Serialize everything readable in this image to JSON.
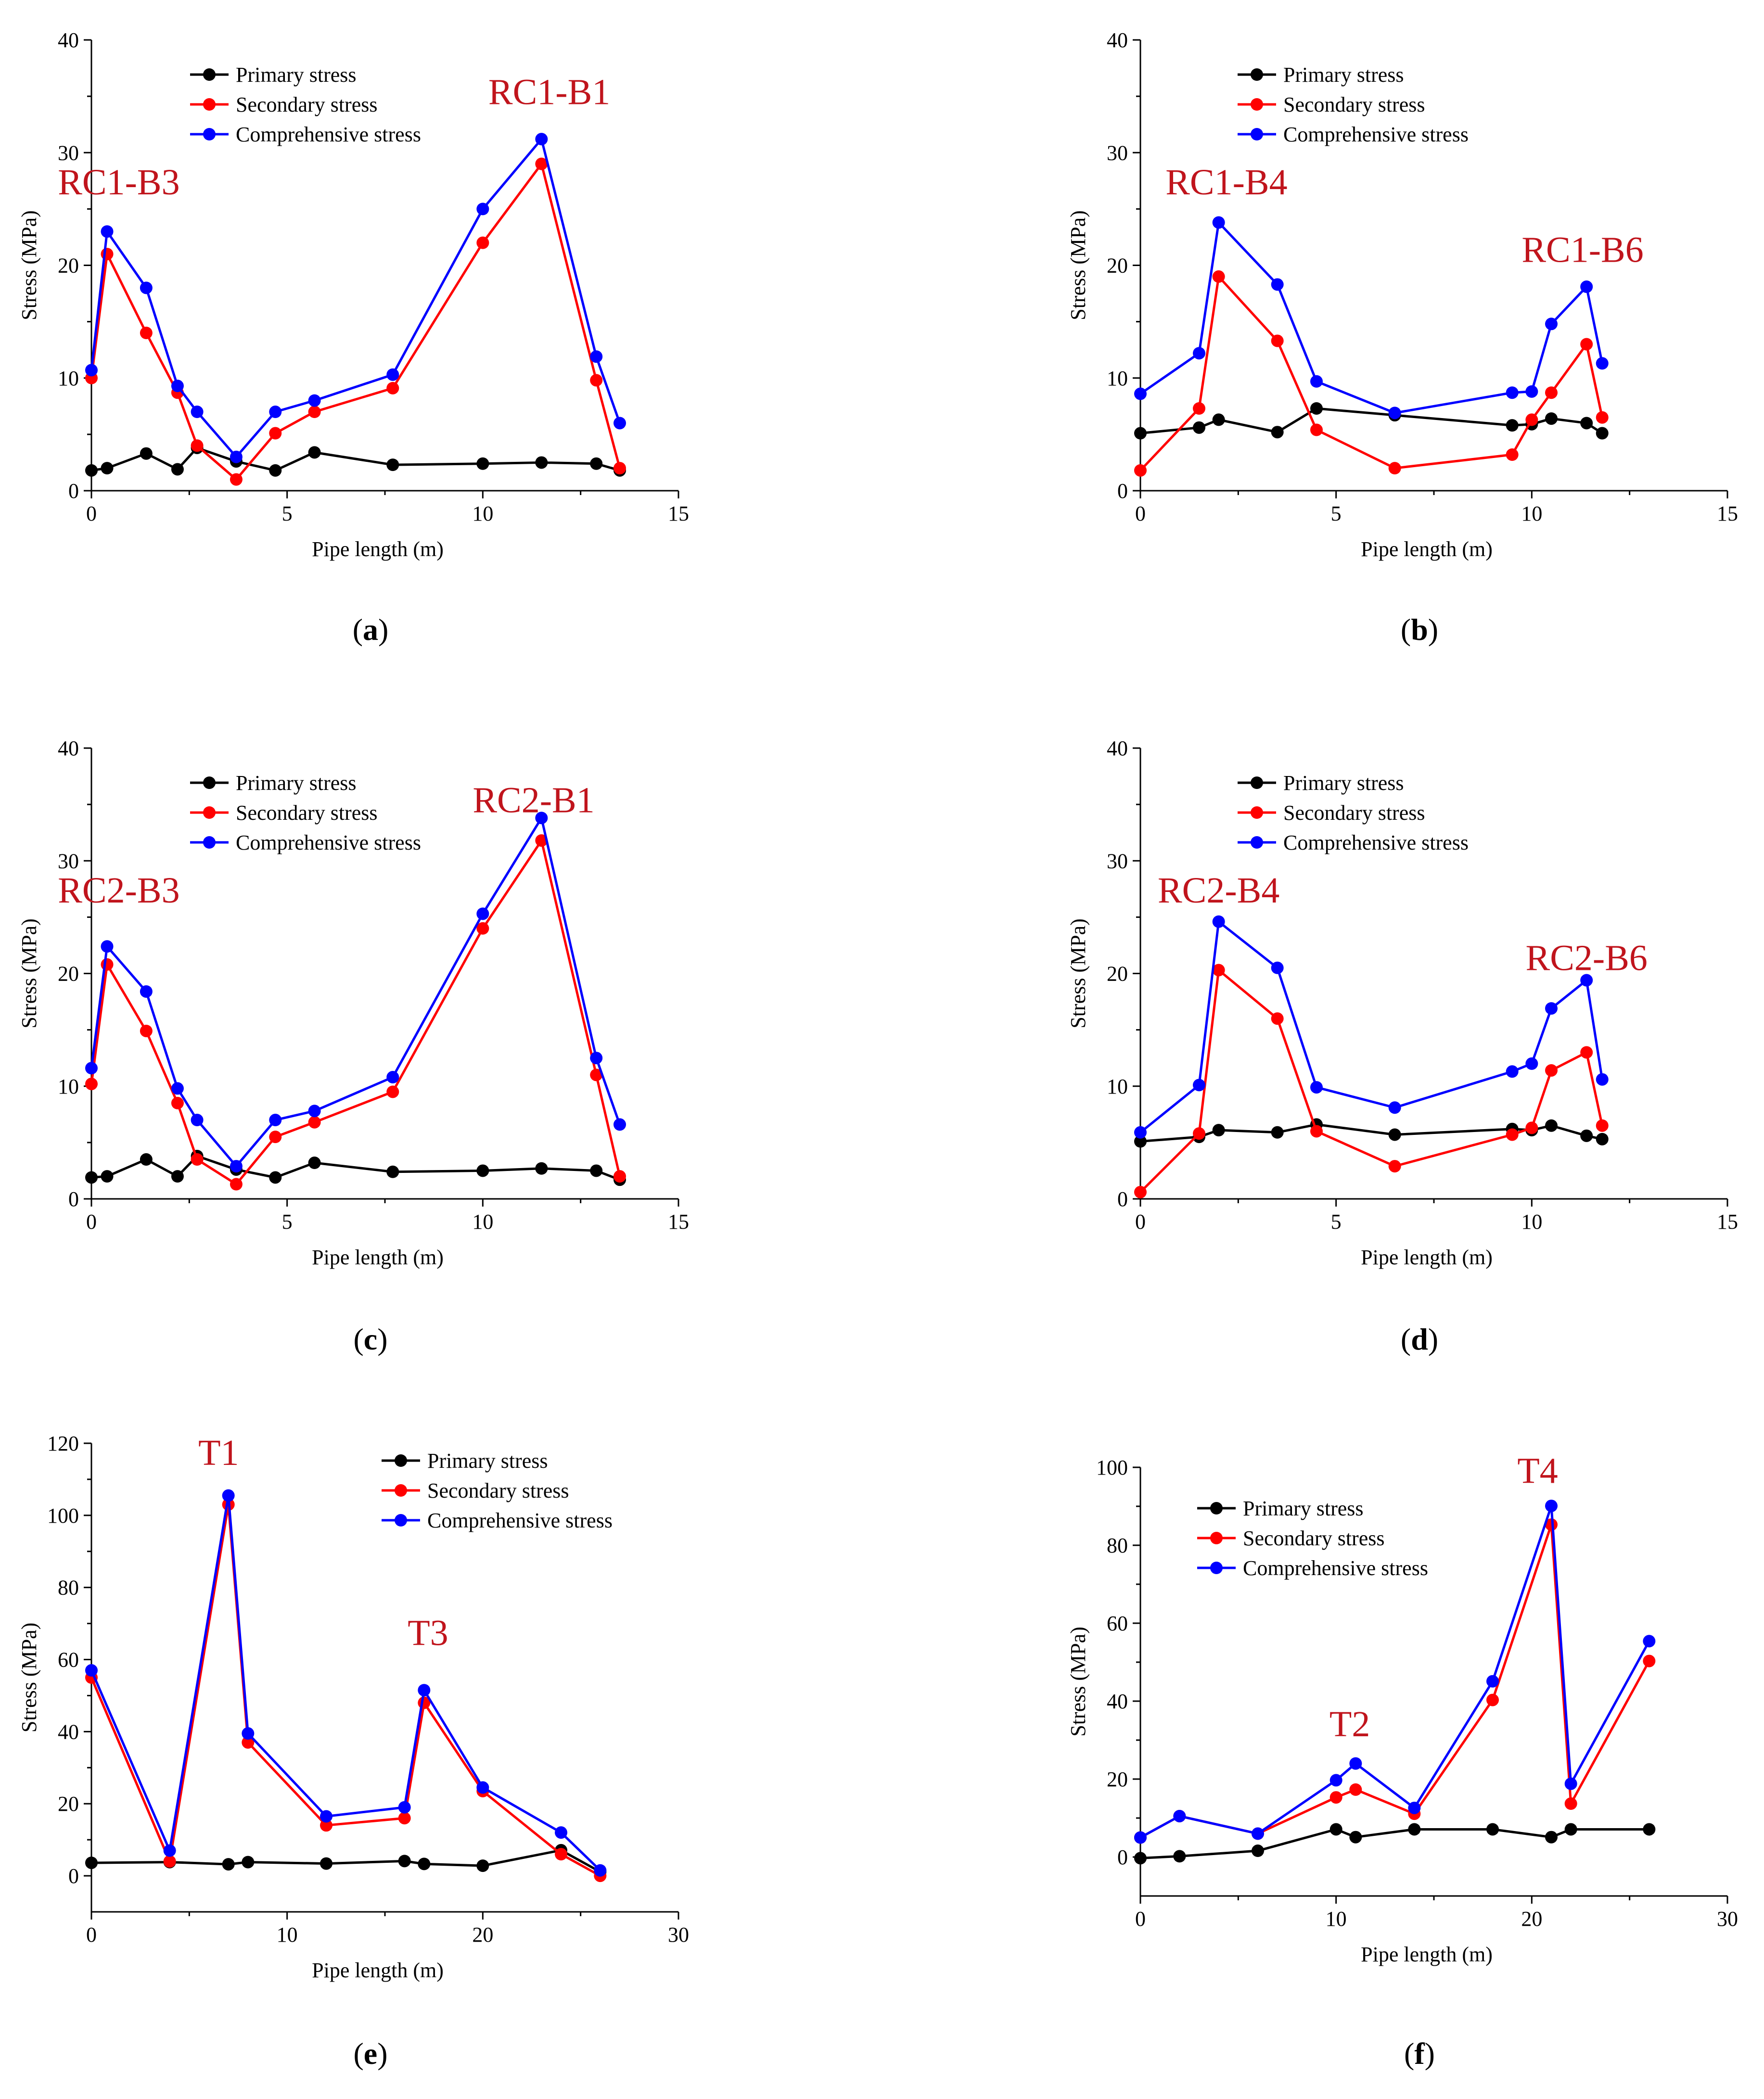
{
  "figure": {
    "colors": {
      "primary": "#000000",
      "secondary": "#ff0000",
      "comprehensive": "#0000ff",
      "annotation": "#c0141c"
    }
  },
  "chart_data": [
    {
      "type": "line",
      "panel_label": "a",
      "xlabel": "Pipe length (m)",
      "ylabel": "Stress (MPa)",
      "xlim": [
        0,
        15
      ],
      "ylim": [
        0,
        40
      ],
      "xticks": [
        0,
        5,
        10,
        15
      ],
      "xtick_labels": [
        "0",
        "5",
        "10",
        "15"
      ],
      "yticks": [
        0,
        10,
        20,
        30,
        40
      ],
      "ytick_labels": [
        "0",
        "10",
        "20",
        "30",
        "40"
      ],
      "legend_position": "top-center",
      "series": [
        {
          "name": "Primary stress",
          "color": "#000000",
          "x": [
            0,
            0.4,
            1.4,
            2.2,
            2.7,
            3.7,
            4.7,
            5.7,
            7.7,
            10,
            11.5,
            12.9,
            13.5
          ],
          "y": [
            1.8,
            2.0,
            3.3,
            1.9,
            3.8,
            2.6,
            1.8,
            3.4,
            2.3,
            2.4,
            2.5,
            2.4,
            1.8
          ]
        },
        {
          "name": "Secondary stress",
          "color": "#ff0000",
          "x": [
            0,
            0.4,
            1.4,
            2.2,
            2.7,
            3.7,
            4.7,
            5.7,
            7.7,
            10,
            11.5,
            12.9,
            13.5
          ],
          "y": [
            10,
            21,
            14,
            8.7,
            4,
            1,
            5.1,
            7,
            9.1,
            22,
            29,
            9.8,
            2
          ]
        },
        {
          "name": "Comprehensive stress",
          "color": "#0000ff",
          "x": [
            0,
            0.4,
            1.4,
            2.2,
            2.7,
            3.7,
            4.7,
            5.7,
            7.7,
            10,
            11.5,
            12.9,
            13.5
          ],
          "y": [
            10.7,
            23,
            18,
            9.3,
            7,
            3,
            7,
            8,
            10.3,
            25,
            31.2,
            11.9,
            6
          ]
        }
      ],
      "annotations": [
        {
          "text": "RC1-B3",
          "x": 0.7,
          "y": 26.3
        },
        {
          "text": "RC1-B1",
          "x": 11.7,
          "y": 34.3
        }
      ]
    },
    {
      "type": "line",
      "panel_label": "b",
      "xlabel": "Pipe length (m)",
      "ylabel": "Stress (MPa)",
      "xlim": [
        0,
        15
      ],
      "ylim": [
        0,
        40
      ],
      "xticks": [
        0,
        5,
        10,
        15
      ],
      "xtick_labels": [
        "0",
        "5",
        "10",
        "15"
      ],
      "yticks": [
        0,
        10,
        20,
        30,
        40
      ],
      "ytick_labels": [
        "0",
        "10",
        "20",
        "30",
        "40"
      ],
      "legend_position": "top-center",
      "series": [
        {
          "name": "Primary stress",
          "color": "#000000",
          "x": [
            0,
            1.5,
            2,
            3.5,
            4.5,
            6.5,
            9.5,
            10,
            10.5,
            11.4,
            11.8
          ],
          "y": [
            5.1,
            5.6,
            6.3,
            5.2,
            7.3,
            6.7,
            5.8,
            5.9,
            6.4,
            6.0,
            5.1
          ]
        },
        {
          "name": "Secondary stress",
          "color": "#ff0000",
          "x": [
            0,
            1.5,
            2,
            3.5,
            4.5,
            6.5,
            9.5,
            10,
            10.5,
            11.4,
            11.8
          ],
          "y": [
            1.8,
            7.3,
            19,
            13.3,
            5.4,
            2,
            3.2,
            6.3,
            8.7,
            13,
            6.5
          ]
        },
        {
          "name": "Comprehensive stress",
          "color": "#0000ff",
          "x": [
            0,
            1.5,
            2,
            3.5,
            4.5,
            6.5,
            9.5,
            10,
            10.5,
            11.4,
            11.8
          ],
          "y": [
            8.6,
            12.2,
            23.8,
            18.3,
            9.7,
            6.9,
            8.7,
            8.8,
            14.8,
            18.1,
            11.3
          ]
        }
      ],
      "annotations": [
        {
          "text": "RC1-B4",
          "x": 2.2,
          "y": 26.3
        },
        {
          "text": "RC1-B6",
          "x": 11.3,
          "y": 20.3
        }
      ]
    },
    {
      "type": "line",
      "panel_label": "c",
      "xlabel": "Pipe length (m)",
      "ylabel": "Stress (MPa)",
      "xlim": [
        0,
        15
      ],
      "ylim": [
        0,
        40
      ],
      "xticks": [
        0,
        5,
        10,
        15
      ],
      "xtick_labels": [
        "0",
        "5",
        "10",
        "15"
      ],
      "yticks": [
        0,
        10,
        20,
        30,
        40
      ],
      "ytick_labels": [
        "0",
        "10",
        "20",
        "30",
        "40"
      ],
      "legend_position": "top-center",
      "series": [
        {
          "name": "Primary stress",
          "color": "#000000",
          "x": [
            0,
            0.4,
            1.4,
            2.2,
            2.7,
            3.7,
            4.7,
            5.7,
            7.7,
            10,
            11.5,
            12.9,
            13.5
          ],
          "y": [
            1.9,
            2.0,
            3.5,
            2.0,
            3.8,
            2.6,
            1.9,
            3.2,
            2.4,
            2.5,
            2.7,
            2.5,
            1.7
          ]
        },
        {
          "name": "Secondary stress",
          "color": "#ff0000",
          "x": [
            0,
            0.4,
            1.4,
            2.2,
            2.7,
            3.7,
            4.7,
            5.7,
            7.7,
            10,
            11.5,
            12.9,
            13.5
          ],
          "y": [
            10.2,
            20.8,
            14.9,
            8.5,
            3.5,
            1.3,
            5.5,
            6.8,
            9.5,
            24,
            31.8,
            11,
            2
          ]
        },
        {
          "name": "Comprehensive stress",
          "color": "#0000ff",
          "x": [
            0,
            0.4,
            1.4,
            2.2,
            2.7,
            3.7,
            4.7,
            5.7,
            7.7,
            10,
            11.5,
            12.9,
            13.5
          ],
          "y": [
            11.6,
            22.4,
            18.4,
            9.8,
            7,
            2.9,
            7,
            7.8,
            10.8,
            25.3,
            33.8,
            12.5,
            6.6
          ]
        }
      ],
      "annotations": [
        {
          "text": "RC2-B3",
          "x": 0.7,
          "y": 26.3
        },
        {
          "text": "RC2-B1",
          "x": 11.3,
          "y": 34.3
        }
      ]
    },
    {
      "type": "line",
      "panel_label": "d",
      "xlabel": "Pipe length (m)",
      "ylabel": "Stress (MPa)",
      "xlim": [
        0,
        15
      ],
      "ylim": [
        0,
        40
      ],
      "xticks": [
        0,
        5,
        10,
        15
      ],
      "xtick_labels": [
        "0",
        "5",
        "10",
        "15"
      ],
      "yticks": [
        0,
        10,
        20,
        30,
        40
      ],
      "ytick_labels": [
        "0",
        "10",
        "20",
        "30",
        "40"
      ],
      "legend_position": "top-center",
      "series": [
        {
          "name": "Primary stress",
          "color": "#000000",
          "x": [
            0,
            1.5,
            2,
            3.5,
            4.5,
            6.5,
            9.5,
            10,
            10.5,
            11.4,
            11.8
          ],
          "y": [
            5.1,
            5.5,
            6.1,
            5.9,
            6.6,
            5.7,
            6.2,
            6.1,
            6.5,
            5.6,
            5.3
          ]
        },
        {
          "name": "Secondary stress",
          "color": "#ff0000",
          "x": [
            0,
            1.5,
            2,
            3.5,
            4.5,
            6.5,
            9.5,
            10,
            10.5,
            11.4,
            11.8
          ],
          "y": [
            0.6,
            5.8,
            20.3,
            16,
            6,
            2.9,
            5.7,
            6.3,
            11.4,
            13,
            6.5
          ]
        },
        {
          "name": "Comprehensive stress",
          "color": "#0000ff",
          "x": [
            0,
            1.5,
            2,
            3.5,
            4.5,
            6.5,
            9.5,
            10,
            10.5,
            11.4,
            11.8
          ],
          "y": [
            5.9,
            10.1,
            24.6,
            20.5,
            9.9,
            8.1,
            11.3,
            12,
            16.9,
            19.4,
            10.6
          ]
        }
      ],
      "annotations": [
        {
          "text": "RC2-B4",
          "x": 2.0,
          "y": 26.3
        },
        {
          "text": "RC2-B6",
          "x": 11.4,
          "y": 20.3
        }
      ]
    },
    {
      "type": "line",
      "panel_label": "e",
      "xlabel": "Pipe length (m)",
      "ylabel": "Stress (MPa)",
      "xlim": [
        0,
        30
      ],
      "ylim": [
        -10,
        120
      ],
      "xticks": [
        0,
        10,
        20,
        30
      ],
      "xtick_labels": [
        "0",
        "10",
        "20",
        "30"
      ],
      "yticks": [
        0,
        20,
        40,
        60,
        80,
        100,
        120
      ],
      "ytick_labels": [
        "0",
        "20",
        "40",
        "60",
        "80",
        "100",
        "120"
      ],
      "legend_position": "top-right",
      "series": [
        {
          "name": "Primary stress",
          "color": "#000000",
          "x": [
            0,
            4,
            7,
            8,
            12,
            16,
            17,
            20,
            24,
            26
          ],
          "y": [
            3.6,
            3.8,
            3.2,
            3.8,
            3.4,
            4.1,
            3.3,
            2.8,
            7.1,
            1.1
          ]
        },
        {
          "name": "Secondary stress",
          "color": "#ff0000",
          "x": [
            0,
            4,
            7,
            8,
            12,
            16,
            17,
            20,
            24,
            26
          ],
          "y": [
            55,
            4,
            103,
            37,
            14,
            16,
            48,
            23.5,
            6,
            0
          ]
        },
        {
          "name": "Comprehensive stress",
          "color": "#0000ff",
          "x": [
            0,
            4,
            7,
            8,
            12,
            16,
            17,
            20,
            24,
            26
          ],
          "y": [
            57,
            7,
            105.5,
            39.5,
            16.5,
            19,
            51.5,
            24.5,
            12,
            1.5
          ]
        }
      ],
      "annotations": [
        {
          "text": "T1",
          "x": 6.5,
          "y": 114
        },
        {
          "text": "T3",
          "x": 17.2,
          "y": 64
        }
      ]
    },
    {
      "type": "line",
      "panel_label": "f",
      "xlabel": "Pipe length (m)",
      "ylabel": "Stress (MPa)",
      "xlim": [
        0,
        30
      ],
      "ylim": [
        -10,
        100
      ],
      "xticks": [
        0,
        10,
        20,
        30
      ],
      "xtick_labels": [
        "0",
        "10",
        "20",
        "30"
      ],
      "yticks": [
        0,
        20,
        40,
        60,
        80,
        100
      ],
      "ytick_labels": [
        "0",
        "20",
        "40",
        "60",
        "80",
        "100"
      ],
      "legend_position": "top-left",
      "series": [
        {
          "name": "Primary stress",
          "color": "#000000",
          "x": [
            0,
            2,
            6,
            10,
            11,
            14,
            18,
            21,
            22,
            26
          ],
          "y": [
            -0.3,
            0.2,
            1.6,
            7.1,
            5.1,
            7.1,
            7.1,
            5.1,
            7.1,
            7.1
          ]
        },
        {
          "name": "Secondary stress",
          "color": "#ff0000",
          "x": [
            0,
            2,
            6,
            10,
            11,
            14,
            18,
            21,
            22,
            26
          ],
          "y": [
            5,
            10.5,
            6,
            15.3,
            17.3,
            11.1,
            40.3,
            85.3,
            13.7,
            50.3
          ]
        },
        {
          "name": "Comprehensive stress",
          "color": "#0000ff",
          "x": [
            0,
            2,
            6,
            10,
            11,
            14,
            18,
            21,
            22,
            26
          ],
          "y": [
            5,
            10.5,
            6,
            19.7,
            24,
            12.6,
            45.1,
            90.1,
            18.8,
            55.4
          ]
        }
      ],
      "annotations": [
        {
          "text": "T2",
          "x": 10.7,
          "y": 31
        },
        {
          "text": "T4",
          "x": 20.3,
          "y": 96
        }
      ]
    }
  ]
}
